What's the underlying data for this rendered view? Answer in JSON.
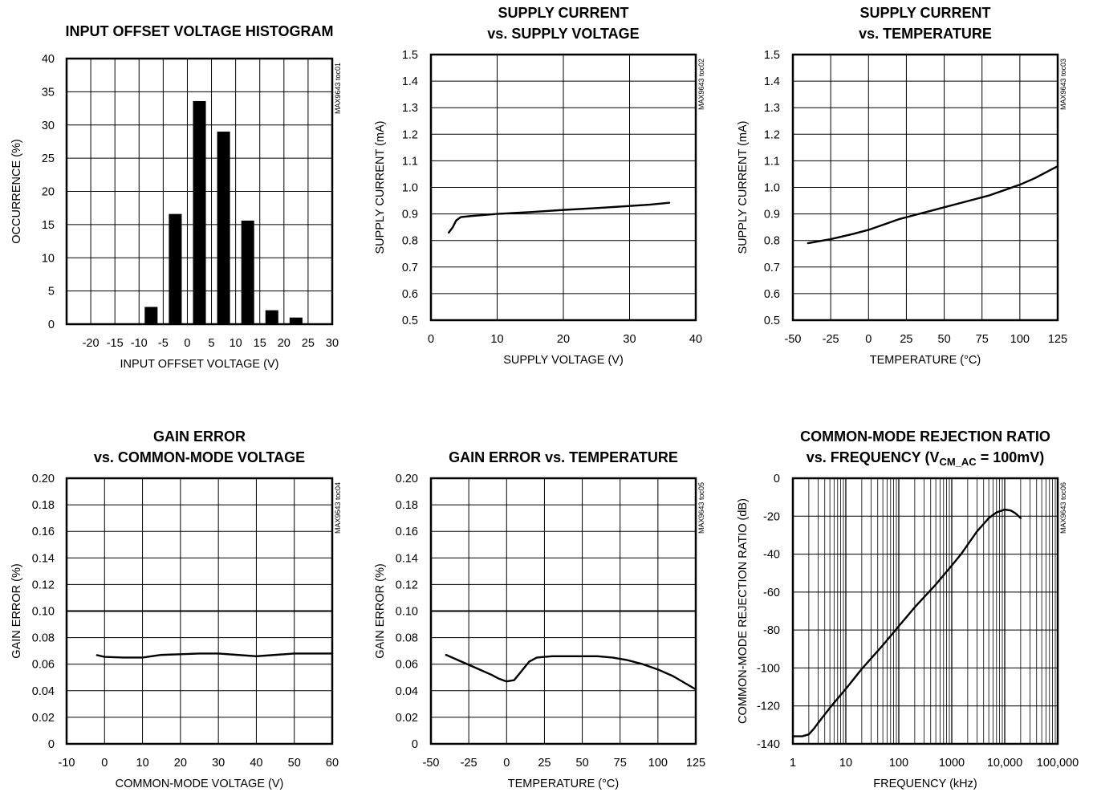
{
  "chart_data": [
    {
      "type": "bar",
      "title": [
        "INPUT OFFSET VOLTAGE HISTOGRAM"
      ],
      "xlabel": "INPUT OFFSET VOLTAGE (V)",
      "ylabel": "OCCURRENCE (%)",
      "tag": "MAX9643 toc01",
      "xlim": [
        -25,
        30
      ],
      "ylim": [
        0,
        40
      ],
      "xticks": [
        -20,
        -15,
        -10,
        -5,
        0,
        5,
        10,
        15,
        20,
        25,
        30
      ],
      "yticks": [
        0,
        5,
        10,
        15,
        20,
        25,
        30,
        35,
        40
      ],
      "xgrid": [
        -20,
        -15,
        -10,
        -5,
        0,
        5,
        10,
        15,
        20,
        25
      ],
      "xtick_labels": [
        "-20",
        "-15",
        "-10",
        "-5",
        "0",
        "5",
        "10",
        "15",
        "20",
        "25",
        "30"
      ],
      "ytick_labels": [
        "0",
        "5",
        "10",
        "15",
        "20",
        "25",
        "30",
        "35",
        "40"
      ],
      "bar_width": 2.5,
      "x": [
        -7.5,
        -2.5,
        2.5,
        7.5,
        12.5,
        17.5,
        22.5
      ],
      "values": [
        2.6,
        16.6,
        33.6,
        29.0,
        15.6,
        2.1,
        1.0
      ]
    },
    {
      "type": "line",
      "title": [
        "SUPPLY CURRENT",
        "vs. SUPPLY VOLTAGE"
      ],
      "xlabel": "SUPPLY VOLTAGE (V)",
      "ylabel": "SUPPLY CURRENT (mA)",
      "tag": "MAX9643 toc02",
      "xlim": [
        0,
        40
      ],
      "ylim": [
        0.5,
        1.5
      ],
      "xticks": [
        0,
        10,
        20,
        30,
        40
      ],
      "yticks": [
        0.5,
        0.6,
        0.7,
        0.8,
        0.9,
        1.0,
        1.1,
        1.2,
        1.3,
        1.4,
        1.5
      ],
      "xgrid": [
        10,
        20,
        30
      ],
      "xtick_labels": [
        "0",
        "10",
        "20",
        "30",
        "40"
      ],
      "ytick_labels": [
        "0.5",
        "0.6",
        "0.7",
        "0.8",
        "0.9",
        "1.0",
        "1.1",
        "1.2",
        "1.3",
        "1.4",
        "1.5"
      ],
      "series": [
        {
          "x": [
            2.7,
            3.3,
            3.8,
            4.5,
            6,
            8,
            10,
            15,
            20,
            25,
            30,
            33,
            36
          ],
          "y": [
            0.83,
            0.85,
            0.875,
            0.888,
            0.892,
            0.896,
            0.9,
            0.907,
            0.915,
            0.922,
            0.93,
            0.935,
            0.942
          ]
        }
      ]
    },
    {
      "type": "line",
      "title": [
        "SUPPLY CURRENT",
        "vs. TEMPERATURE"
      ],
      "xlabel": "TEMPERATURE (°C)",
      "ylabel": "SUPPLY CURRENT (mA)",
      "tag": "MAX9643 toc03",
      "xlim": [
        -50,
        125
      ],
      "ylim": [
        0.5,
        1.5
      ],
      "xticks": [
        -50,
        -25,
        0,
        25,
        50,
        75,
        100,
        125
      ],
      "yticks": [
        0.5,
        0.6,
        0.7,
        0.8,
        0.9,
        1.0,
        1.1,
        1.2,
        1.3,
        1.4,
        1.5
      ],
      "xgrid": [
        -25,
        0,
        25,
        50,
        75,
        100
      ],
      "xtick_labels": [
        "-50",
        "-25",
        "0",
        "25",
        "50",
        "75",
        "100",
        "125"
      ],
      "ytick_labels": [
        "0.5",
        "0.6",
        "0.7",
        "0.8",
        "0.9",
        "1.0",
        "1.1",
        "1.2",
        "1.3",
        "1.4",
        "1.5"
      ],
      "series": [
        {
          "x": [
            -40,
            -25,
            -10,
            0,
            10,
            20,
            30,
            40,
            50,
            60,
            70,
            80,
            90,
            100,
            110,
            125
          ],
          "y": [
            0.79,
            0.805,
            0.825,
            0.84,
            0.86,
            0.88,
            0.895,
            0.91,
            0.925,
            0.94,
            0.955,
            0.97,
            0.99,
            1.01,
            1.035,
            1.08
          ]
        }
      ]
    },
    {
      "type": "line",
      "title": [
        "GAIN ERROR",
        "vs. COMMON-MODE VOLTAGE"
      ],
      "xlabel": "COMMON-MODE VOLTAGE  (V)",
      "ylabel": "GAIN ERROR (%)",
      "tag": "MAX9643 toc04",
      "xlim": [
        -10,
        60
      ],
      "ylim": [
        0,
        0.2
      ],
      "xticks": [
        -10,
        0,
        10,
        20,
        30,
        40,
        50,
        60
      ],
      "yticks": [
        0,
        0.02,
        0.04,
        0.06,
        0.08,
        0.1,
        0.12,
        0.14,
        0.16,
        0.18,
        0.2
      ],
      "xgrid": [
        0,
        10,
        20,
        30,
        40,
        50
      ],
      "xtick_labels": [
        "-10",
        "0",
        "10",
        "20",
        "30",
        "40",
        "50",
        "60"
      ],
      "ytick_labels": [
        "0",
        "0.02",
        "0.04",
        "0.06",
        "0.08",
        "0.10",
        "0.12",
        "0.14",
        "0.16",
        "0.18",
        "0.20"
      ],
      "heavy_y": [
        0.1
      ],
      "series": [
        {
          "x": [
            -2,
            0,
            5,
            10,
            15,
            20,
            25,
            30,
            35,
            40,
            45,
            50,
            55,
            60
          ],
          "y": [
            0.0668,
            0.0655,
            0.065,
            0.065,
            0.067,
            0.0675,
            0.068,
            0.068,
            0.067,
            0.066,
            0.067,
            0.068,
            0.068,
            0.068
          ]
        }
      ]
    },
    {
      "type": "line",
      "title": [
        "GAIN ERROR vs. TEMPERATURE"
      ],
      "xlabel": "TEMPERATURE  (°C)",
      "ylabel": "GAIN ERROR (%)",
      "tag": "MAX9643 toc05",
      "xlim": [
        -50,
        125
      ],
      "ylim": [
        0,
        0.2
      ],
      "xticks": [
        -50,
        -25,
        0,
        25,
        50,
        75,
        100,
        125
      ],
      "yticks": [
        0,
        0.02,
        0.04,
        0.06,
        0.08,
        0.1,
        0.12,
        0.14,
        0.16,
        0.18,
        0.2
      ],
      "xgrid": [
        -25,
        0,
        25,
        50,
        75,
        100
      ],
      "xtick_labels": [
        "-50",
        "-25",
        "0",
        "25",
        "50",
        "75",
        "100",
        "125"
      ],
      "ytick_labels": [
        "0",
        "0.02",
        "0.04",
        "0.06",
        "0.08",
        "0.10",
        "0.12",
        "0.14",
        "0.16",
        "0.18",
        "0.20"
      ],
      "heavy_y": [
        0.1
      ],
      "series": [
        {
          "x": [
            -40,
            -30,
            -20,
            -10,
            -5,
            0,
            5,
            10,
            15,
            20,
            30,
            40,
            50,
            60,
            70,
            80,
            90,
            100,
            110,
            125
          ],
          "y": [
            0.067,
            0.062,
            0.057,
            0.052,
            0.049,
            0.047,
            0.048,
            0.055,
            0.062,
            0.065,
            0.066,
            0.066,
            0.066,
            0.066,
            0.065,
            0.063,
            0.06,
            0.056,
            0.051,
            0.041
          ]
        }
      ]
    },
    {
      "type": "line",
      "title": [
        "COMMON-MODE REJECTION RATIO",
        "vs. FREQUENCY ("
      ],
      "title_sub": {
        "main": "V",
        "sub": "CM_AC",
        "rest": " = 100mV)"
      },
      "xlabel": "FREQUENCY (kHz)",
      "ylabel": "COMMON-MODE REJECTION RATIO (dB)",
      "tag": "MAX9643 toc06",
      "xscale": "log",
      "xlim": [
        1,
        100000
      ],
      "ylim": [
        -140,
        0
      ],
      "xticks": [
        1,
        10,
        100,
        1000,
        10000,
        100000
      ],
      "yticks": [
        -140,
        -120,
        -100,
        -80,
        -60,
        -40,
        -20,
        0
      ],
      "xtick_labels": [
        "1",
        "10",
        "100",
        "1000",
        "10,000",
        "100,000"
      ],
      "ytick_labels": [
        "-140",
        "-120",
        "-100",
        "-80",
        "-60",
        "-40",
        "-20",
        "0"
      ],
      "series": [
        {
          "x": [
            1,
            1.5,
            2,
            2.5,
            3,
            5,
            10,
            20,
            50,
            100,
            200,
            500,
            1000,
            1500,
            2000,
            3000,
            5000,
            7000,
            10000,
            13000,
            16000,
            20000
          ],
          "y": [
            -136,
            -136,
            -135,
            -132,
            -129,
            -121,
            -111,
            -100.5,
            -88,
            -78,
            -68,
            -56,
            -46,
            -40,
            -35,
            -28,
            -21,
            -18,
            -16.5,
            -17,
            -18.5,
            -21
          ]
        }
      ]
    }
  ]
}
